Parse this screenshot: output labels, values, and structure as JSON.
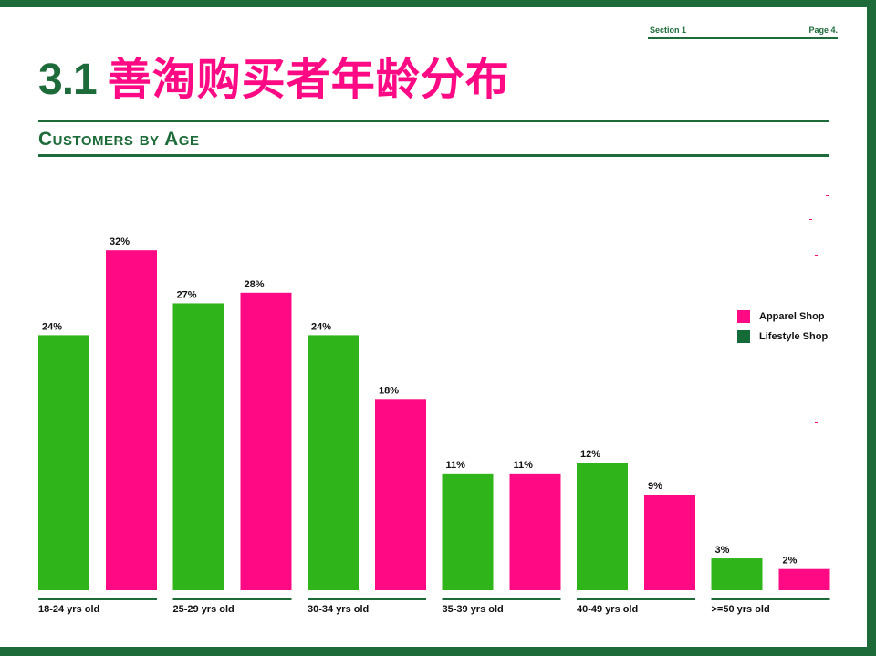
{
  "header": {
    "section": "Section 1",
    "page": "Page 4."
  },
  "title": {
    "number": "3.1",
    "text": "善淘购买者年龄分布"
  },
  "subtitle": "Customers by Age",
  "colors": {
    "brand_green": "#1e6b3a",
    "lifestyle": "#2fb51a",
    "apparel": "#ff0a84",
    "legend_lifestyle": "#156b38"
  },
  "chart_data": {
    "type": "bar",
    "categories": [
      "18-24 yrs old",
      "25-29 yrs old",
      "30-34 yrs old",
      "35-39 yrs old",
      "40-49 yrs old",
      ">=50 yrs old"
    ],
    "series": [
      {
        "name": "Lifestyle Shop",
        "values": [
          24,
          27,
          24,
          11,
          12,
          3
        ],
        "labels": [
          "24%",
          "27%",
          "24%",
          "11%",
          "12%",
          "3%"
        ]
      },
      {
        "name": "Apparel Shop",
        "values": [
          32,
          28,
          18,
          11,
          9,
          2
        ],
        "labels": [
          "32%",
          "28%",
          "18%",
          "11%",
          "9%",
          "2%"
        ]
      }
    ],
    "unit": "%",
    "ylim": [
      0,
      32
    ],
    "grid": false,
    "legend": "right"
  },
  "legend": {
    "items": [
      {
        "label": "Apparel Shop",
        "color": "#ff0a84"
      },
      {
        "label": "Lifestyle Shop",
        "color": "#156b38"
      }
    ]
  }
}
